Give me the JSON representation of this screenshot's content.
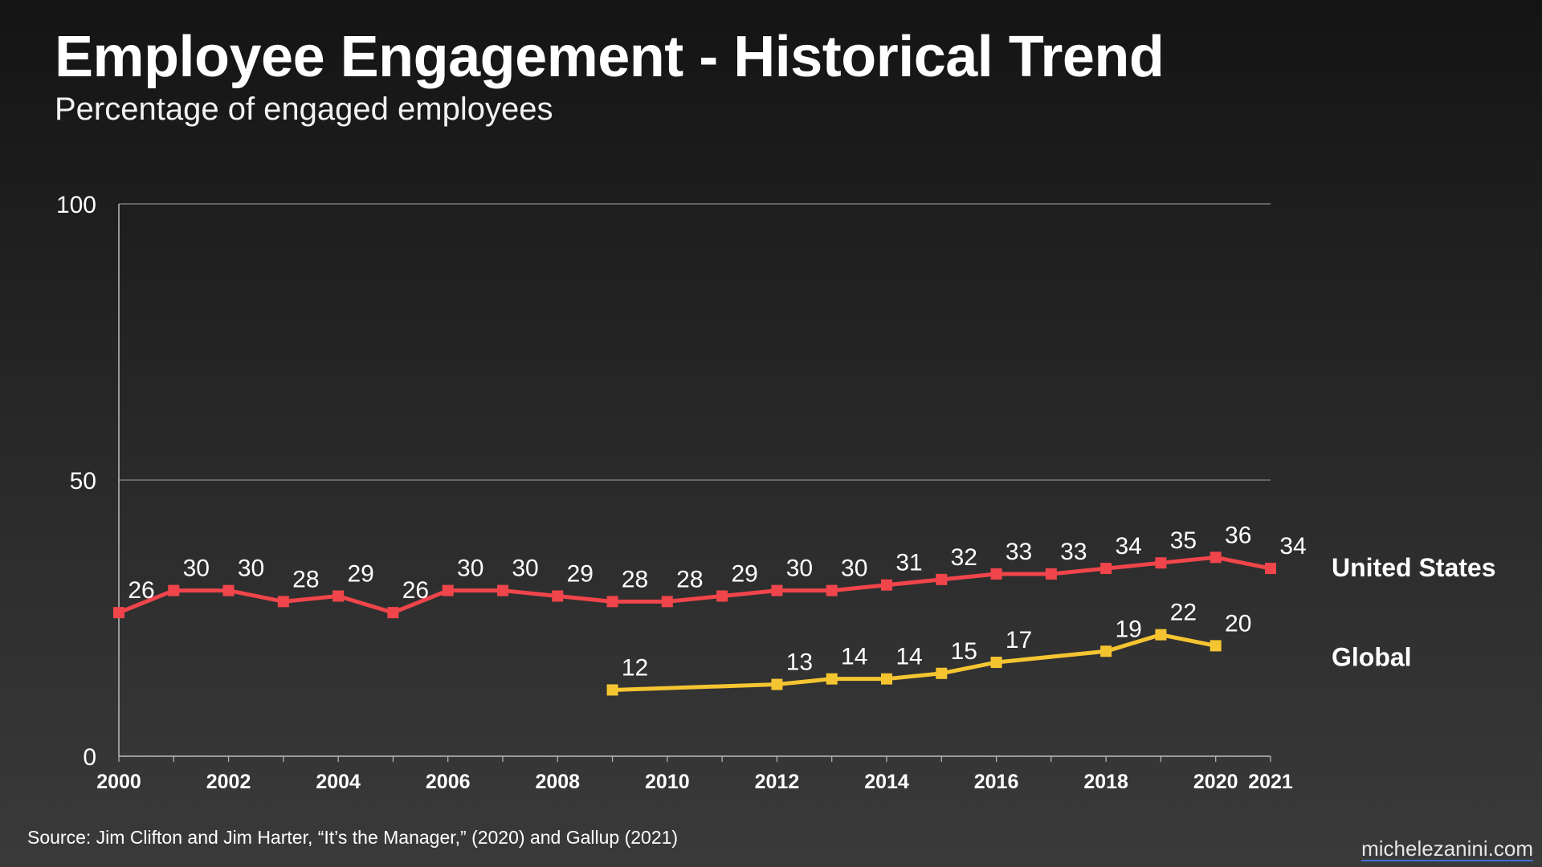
{
  "header": {
    "title": "Employee Engagement - Historical Trend",
    "subtitle": "Percentage of engaged employees"
  },
  "footer": {
    "source": "Source: Jim Clifton and Jim Harter, “It’s the Manager,” (2020) and Gallup (2021)",
    "watermark": "michelezanini.com"
  },
  "chart_data": {
    "type": "line",
    "title": "Employee Engagement - Historical Trend",
    "subtitle": "Percentage of engaged employees",
    "xlabel": "",
    "ylabel": "",
    "xlim": [
      2000,
      2021
    ],
    "ylim": [
      0,
      100
    ],
    "yticks": [
      0,
      50,
      100
    ],
    "xticks": [
      2000,
      2002,
      2004,
      2006,
      2008,
      2010,
      2012,
      2014,
      2016,
      2018,
      2020,
      2021
    ],
    "grid": true,
    "series": [
      {
        "name": "United States",
        "color": "#f0454b",
        "points": [
          {
            "x": 2000,
            "y": 26
          },
          {
            "x": 2001,
            "y": 30
          },
          {
            "x": 2002,
            "y": 30
          },
          {
            "x": 2003,
            "y": 28
          },
          {
            "x": 2004,
            "y": 29
          },
          {
            "x": 2005,
            "y": 26
          },
          {
            "x": 2006,
            "y": 30
          },
          {
            "x": 2007,
            "y": 30
          },
          {
            "x": 2008,
            "y": 29
          },
          {
            "x": 2009,
            "y": 28
          },
          {
            "x": 2010,
            "y": 28
          },
          {
            "x": 2011,
            "y": 29
          },
          {
            "x": 2012,
            "y": 30
          },
          {
            "x": 2013,
            "y": 30
          },
          {
            "x": 2014,
            "y": 31
          },
          {
            "x": 2015,
            "y": 32
          },
          {
            "x": 2016,
            "y": 33
          },
          {
            "x": 2017,
            "y": 33
          },
          {
            "x": 2018,
            "y": 34
          },
          {
            "x": 2019,
            "y": 35
          },
          {
            "x": 2020,
            "y": 36
          },
          {
            "x": 2021,
            "y": 34
          }
        ]
      },
      {
        "name": "Global",
        "color": "#f5c531",
        "points": [
          {
            "x": 2009,
            "y": 12
          },
          {
            "x": 2012,
            "y": 13
          },
          {
            "x": 2013,
            "y": 14
          },
          {
            "x": 2014,
            "y": 14
          },
          {
            "x": 2015,
            "y": 15
          },
          {
            "x": 2016,
            "y": 17
          },
          {
            "x": 2018,
            "y": 19
          },
          {
            "x": 2019,
            "y": 22
          },
          {
            "x": 2020,
            "y": 20
          }
        ]
      }
    ]
  }
}
